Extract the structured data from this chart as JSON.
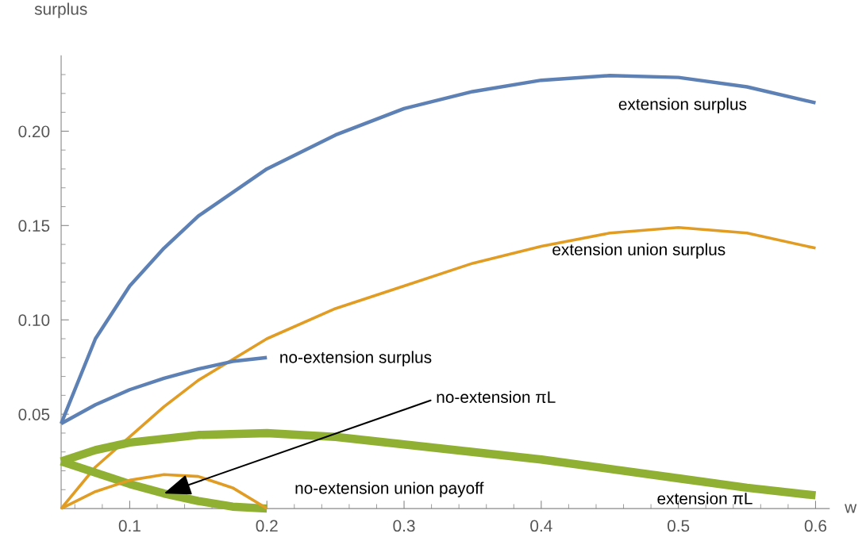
{
  "chart_data": {
    "type": "line",
    "xlabel": "w",
    "ylabel": "surplus",
    "xlim": [
      0.05,
      0.61
    ],
    "ylim": [
      0,
      0.24
    ],
    "xticks": [
      0.1,
      0.2,
      0.3,
      0.4,
      0.5,
      0.6,
      {
        "value": 0.06,
        "label": null
      },
      {
        "value": 0.08,
        "label": null
      },
      {
        "value": 0.12,
        "label": null
      },
      {
        "value": 0.14,
        "label": null
      },
      {
        "value": 0.16,
        "label": null
      },
      {
        "value": 0.18,
        "label": null
      },
      {
        "value": 0.22,
        "label": null
      },
      {
        "value": 0.24,
        "label": null
      },
      {
        "value": 0.26,
        "label": null
      },
      {
        "value": 0.28,
        "label": null
      },
      {
        "value": 0.32,
        "label": null
      },
      {
        "value": 0.34,
        "label": null
      },
      {
        "value": 0.36,
        "label": null
      },
      {
        "value": 0.38,
        "label": null
      },
      {
        "value": 0.42,
        "label": null
      },
      {
        "value": 0.44,
        "label": null
      },
      {
        "value": 0.46,
        "label": null
      },
      {
        "value": 0.48,
        "label": null
      },
      {
        "value": 0.52,
        "label": null
      },
      {
        "value": 0.54,
        "label": null
      },
      {
        "value": 0.56,
        "label": null
      },
      {
        "value": 0.58,
        "label": null
      }
    ],
    "yticks": [
      {
        "value": 0.05,
        "label": "0.05"
      },
      {
        "value": 0.1,
        "label": "0.10"
      },
      {
        "value": 0.15,
        "label": "0.15"
      },
      {
        "value": 0.2,
        "label": "0.20"
      },
      {
        "value": 0.01,
        "label": null
      },
      {
        "value": 0.02,
        "label": null
      },
      {
        "value": 0.03,
        "label": null
      },
      {
        "value": 0.04,
        "label": null
      },
      {
        "value": 0.06,
        "label": null
      },
      {
        "value": 0.07,
        "label": null
      },
      {
        "value": 0.08,
        "label": null
      },
      {
        "value": 0.09,
        "label": null
      },
      {
        "value": 0.11,
        "label": null
      },
      {
        "value": 0.12,
        "label": null
      },
      {
        "value": 0.13,
        "label": null
      },
      {
        "value": 0.14,
        "label": null
      },
      {
        "value": 0.16,
        "label": null
      },
      {
        "value": 0.17,
        "label": null
      },
      {
        "value": 0.18,
        "label": null
      },
      {
        "value": 0.19,
        "label": null
      },
      {
        "value": 0.21,
        "label": null
      },
      {
        "value": 0.22,
        "label": null
      },
      {
        "value": 0.23,
        "label": null
      }
    ],
    "grid": false,
    "legend": false,
    "marker": "none",
    "line_style": "solid",
    "series": [
      {
        "name": "extension surplus",
        "color": "#5e81b5",
        "x": [
          0.05,
          0.075,
          0.1,
          0.125,
          0.15,
          0.2,
          0.25,
          0.3,
          0.35,
          0.4,
          0.45,
          0.5,
          0.55,
          0.6
        ],
        "values": [
          0.045,
          0.09,
          0.118,
          0.138,
          0.155,
          0.18,
          0.198,
          0.212,
          0.221,
          0.227,
          0.2295,
          0.2285,
          0.2235,
          0.215
        ]
      },
      {
        "name": "extension union surplus",
        "color": "#e19c24",
        "x": [
          0.05,
          0.075,
          0.1,
          0.125,
          0.15,
          0.2,
          0.25,
          0.3,
          0.35,
          0.4,
          0.45,
          0.5,
          0.55,
          0.6
        ],
        "values": [
          0,
          0.022,
          0.038,
          0.054,
          0.068,
          0.09,
          0.106,
          0.118,
          0.13,
          0.139,
          0.146,
          0.149,
          0.146,
          0.138
        ]
      },
      {
        "name": "no-extension surplus",
        "color": "#5e81b5",
        "x": [
          0.05,
          0.075,
          0.1,
          0.125,
          0.15,
          0.175,
          0.2
        ],
        "values": [
          0.045,
          0.055,
          0.063,
          0.069,
          0.074,
          0.078,
          0.08
        ]
      },
      {
        "name": "extension πL",
        "color": "#8fb032",
        "x": [
          0.05,
          0.075,
          0.1,
          0.15,
          0.2,
          0.25,
          0.3,
          0.35,
          0.4,
          0.45,
          0.5,
          0.55,
          0.6
        ],
        "values": [
          0.025,
          0.031,
          0.035,
          0.039,
          0.04,
          0.038,
          0.034,
          0.03,
          0.026,
          0.021,
          0.016,
          0.011,
          0.007
        ]
      },
      {
        "name": "no-extension πL",
        "color": "#8fb032",
        "x": [
          0.05,
          0.075,
          0.1,
          0.125,
          0.15,
          0.175,
          0.2
        ],
        "values": [
          0.025,
          0.019,
          0.013,
          0.008,
          0.004,
          0.001,
          0
        ]
      },
      {
        "name": "no-extension union payoff",
        "color": "#e19c24",
        "x": [
          0.05,
          0.075,
          0.1,
          0.125,
          0.15,
          0.175,
          0.2
        ],
        "values": [
          0,
          0.009,
          0.015,
          0.018,
          0.017,
          0.011,
          0
        ]
      }
    ]
  }
}
